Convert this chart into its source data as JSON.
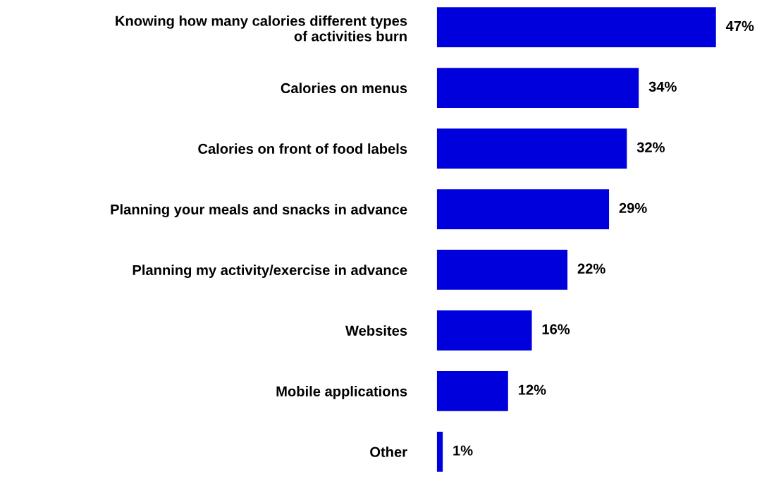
{
  "chart_data": {
    "type": "bar",
    "orientation": "horizontal",
    "color": "#0000dd",
    "categories": [
      "Knowing how many calories different types\nof activities burn",
      "Calories on menus",
      "Calories on front of food labels",
      "Planning your meals and snacks in advance",
      "Planning my activity/exercise in advance",
      "Websites",
      "Mobile applications",
      "Other"
    ],
    "values": [
      47,
      34,
      32,
      29,
      22,
      16,
      12,
      1
    ],
    "value_labels": [
      "47%",
      "34%",
      "32%",
      "29%",
      "22%",
      "16%",
      "12%",
      "1%"
    ]
  }
}
